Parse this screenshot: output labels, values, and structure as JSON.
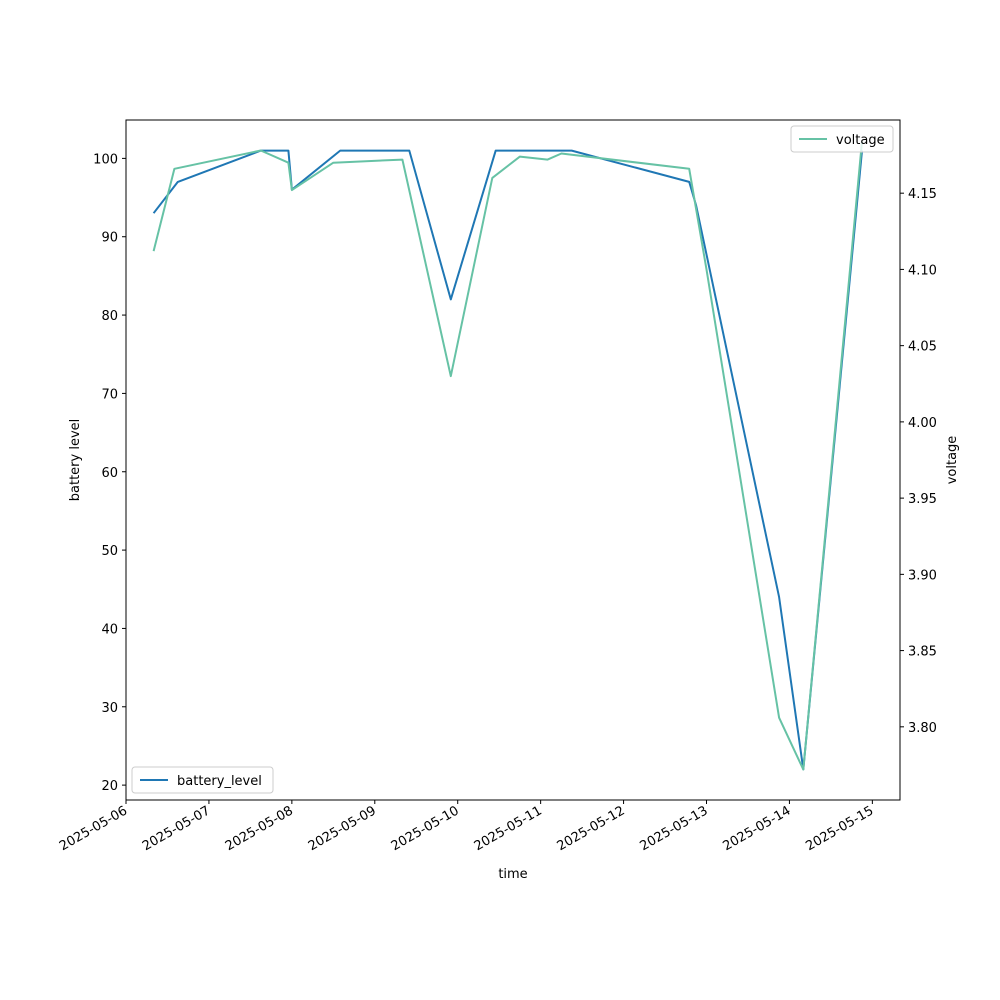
{
  "chart_data": {
    "type": "line",
    "xlabel": "time",
    "y_left_label": "battery level",
    "y_right_label": "voltage",
    "x_range": [
      "2025-05-06T00:00",
      "2025-05-15T08:00"
    ],
    "x_ticks": [
      "2025-05-06",
      "2025-05-07",
      "2025-05-08",
      "2025-05-09",
      "2025-05-10",
      "2025-05-11",
      "2025-05-12",
      "2025-05-13",
      "2025-05-14",
      "2025-05-15"
    ],
    "y_left_ticks": [
      20,
      30,
      40,
      50,
      60,
      70,
      80,
      90,
      100
    ],
    "y_left_range": [
      18.1,
      104.9
    ],
    "y_right_ticks": [
      3.8,
      3.85,
      3.9,
      3.95,
      4.0,
      4.05,
      4.1,
      4.15
    ],
    "y_right_range": [
      3.752,
      4.198
    ],
    "grid": false,
    "series": [
      {
        "name": "battery_level",
        "axis": "left",
        "color": "#1f77b4",
        "legend_position": "lower-left",
        "points": [
          [
            "2025-05-06T08:00",
            93
          ],
          [
            "2025-05-06T15:00",
            97
          ],
          [
            "2025-05-07T15:00",
            101
          ],
          [
            "2025-05-07T23:00",
            101
          ],
          [
            "2025-05-08T00:00",
            96
          ],
          [
            "2025-05-08T14:00",
            101
          ],
          [
            "2025-05-09T10:00",
            101
          ],
          [
            "2025-05-09T22:00",
            82
          ],
          [
            "2025-05-10T11:00",
            101
          ],
          [
            "2025-05-11T09:00",
            101
          ],
          [
            "2025-05-12T19:00",
            97
          ],
          [
            "2025-05-12T21:00",
            94
          ],
          [
            "2025-05-13T21:00",
            44
          ],
          [
            "2025-05-14T04:00",
            22
          ],
          [
            "2025-05-14T21:00",
            101
          ]
        ]
      },
      {
        "name": "voltage",
        "axis": "right",
        "color": "#66c2a5",
        "legend_position": "upper-right",
        "points": [
          [
            "2025-05-06T08:00",
            4.112
          ],
          [
            "2025-05-06T14:00",
            4.166
          ],
          [
            "2025-05-07T15:00",
            4.178
          ],
          [
            "2025-05-07T23:00",
            4.17
          ],
          [
            "2025-05-08T00:00",
            4.152
          ],
          [
            "2025-05-08T12:00",
            4.17
          ],
          [
            "2025-05-09T08:00",
            4.172
          ],
          [
            "2025-05-09T22:00",
            4.03
          ],
          [
            "2025-05-10T10:00",
            4.16
          ],
          [
            "2025-05-10T18:00",
            4.174
          ],
          [
            "2025-05-11T02:00",
            4.172
          ],
          [
            "2025-05-11T06:00",
            4.176
          ],
          [
            "2025-05-12T19:00",
            4.166
          ],
          [
            "2025-05-13T00:00",
            4.1
          ],
          [
            "2025-05-13T21:00",
            3.806
          ],
          [
            "2025-05-14T04:00",
            3.772
          ],
          [
            "2025-05-14T21:00",
            4.184
          ]
        ]
      }
    ]
  }
}
